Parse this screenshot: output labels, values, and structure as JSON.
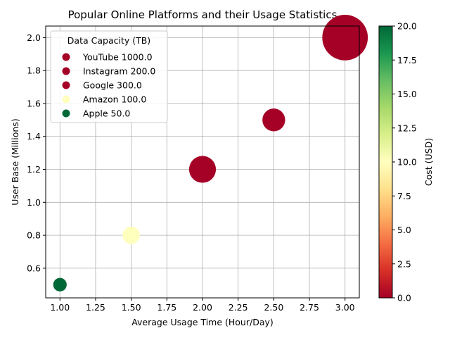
{
  "chart_data": {
    "type": "scatter",
    "title": "Popular Online Platforms and their Usage Statistics",
    "xlabel": "Average Usage Time (Hour/Day)",
    "ylabel": "User Base (Millions)",
    "xlim": [
      0.9,
      3.1
    ],
    "ylim": [
      0.42,
      2.07
    ],
    "xticks": [
      "1.00",
      "1.25",
      "1.50",
      "1.75",
      "2.00",
      "2.25",
      "2.50",
      "2.75",
      "3.00"
    ],
    "yticks": [
      "0.6",
      "0.8",
      "1.0",
      "1.2",
      "1.4",
      "1.6",
      "1.8",
      "2.0"
    ],
    "grid": true,
    "legend": {
      "title": "Data Capacity (TB)",
      "placement": "top-left",
      "entries": [
        {
          "label": "YouTube 1000.0",
          "color": "#a50026"
        },
        {
          "label": "Instagram 200.0",
          "color": "#a50026"
        },
        {
          "label": "Google 300.0",
          "color": "#a50026"
        },
        {
          "label": "Amazon 100.0",
          "color": "#fefebd"
        },
        {
          "label": "Apple 50.0",
          "color": "#006837"
        }
      ]
    },
    "colorbar": {
      "label": "Cost (USD)",
      "range": [
        0,
        20
      ],
      "ticks": [
        "0.0",
        "2.5",
        "5.0",
        "7.5",
        "10.0",
        "12.5",
        "15.0",
        "17.5",
        "20.0"
      ],
      "colormap": [
        "#a50026",
        "#d73027",
        "#f46d43",
        "#fdae61",
        "#fee08b",
        "#ffffbf",
        "#d9ef8b",
        "#a6d96a",
        "#66bd63",
        "#1a9850",
        "#006837"
      ]
    },
    "points": [
      {
        "name": "YouTube",
        "x": 3.0,
        "y": 2.0,
        "size": 1000.0,
        "cost": 0,
        "color": "#a50026"
      },
      {
        "name": "Instagram",
        "x": 2.5,
        "y": 1.5,
        "size": 200.0,
        "cost": 0,
        "color": "#a50026"
      },
      {
        "name": "Google",
        "x": 2.0,
        "y": 1.2,
        "size": 300.0,
        "cost": 0,
        "color": "#a50026"
      },
      {
        "name": "Amazon",
        "x": 1.5,
        "y": 0.8,
        "size": 100.0,
        "cost": 10,
        "color": "#fefebd"
      },
      {
        "name": "Apple",
        "x": 1.0,
        "y": 0.5,
        "size": 50.0,
        "cost": 20,
        "color": "#006837"
      }
    ]
  }
}
